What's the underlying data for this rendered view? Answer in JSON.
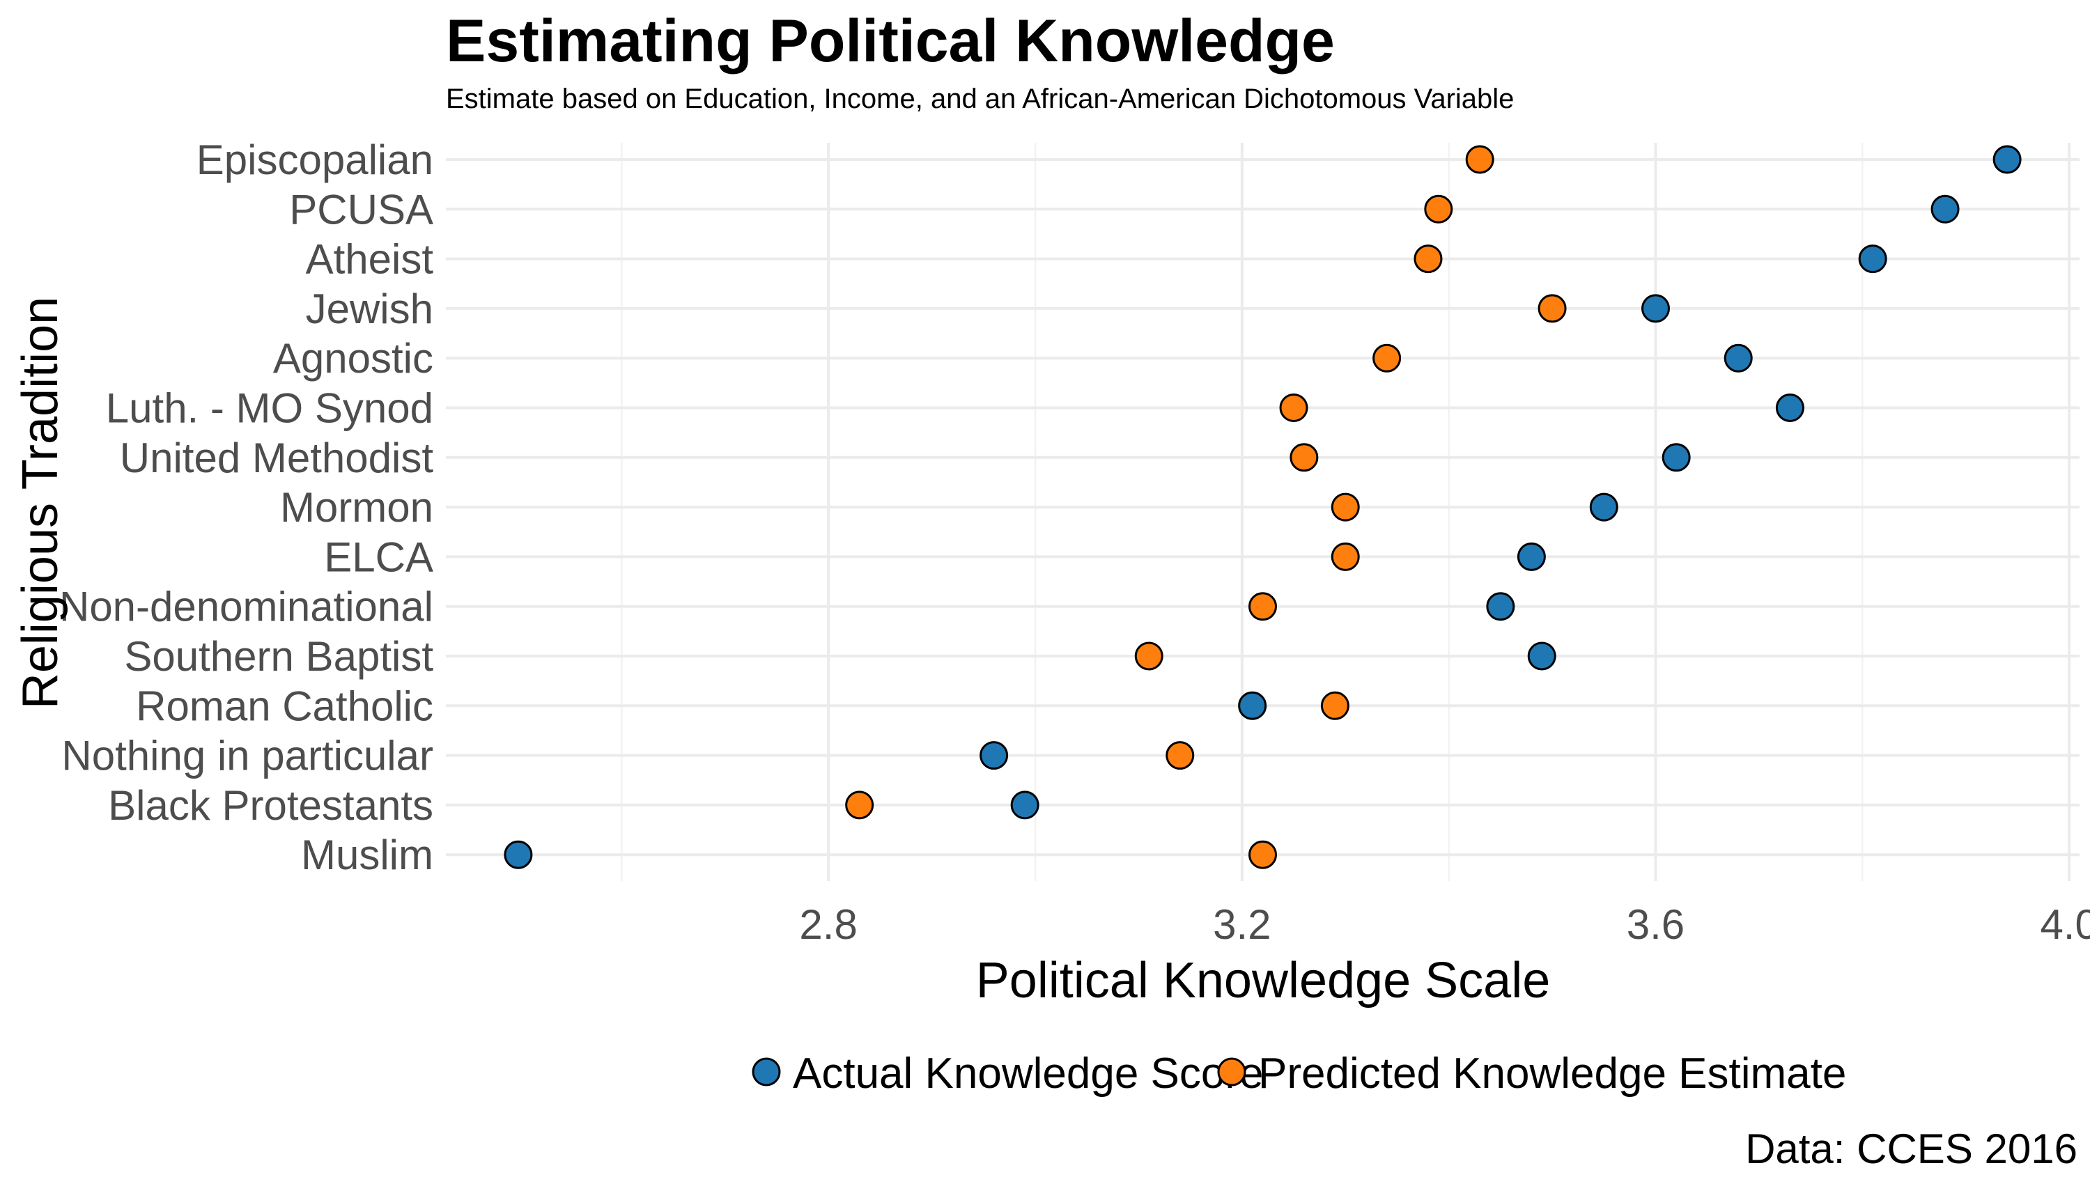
{
  "chart_data": {
    "type": "scatter",
    "title": "Estimating Political Knowledge",
    "subtitle": "Estimate based on Education, Income, and an African-American Dichotomous Variable",
    "xlabel": "Political Knowledge Scale",
    "ylabel": "Religious Tradition",
    "caption": "Data: CCES 2016",
    "xlim": [
      2.43,
      4.01
    ],
    "xticks": [
      2.8,
      3.2,
      3.6,
      4.0
    ],
    "xtick_labels": [
      "2.8",
      "3.2",
      "3.6",
      "4.0"
    ],
    "grid": true,
    "legend_position": "bottom",
    "categories": [
      "Episcopalian",
      "PCUSA",
      "Atheist",
      "Jewish",
      "Agnostic",
      "Luth. - MO Synod",
      "United Methodist",
      "Mormon",
      "ELCA",
      "Non-denominational",
      "Southern Baptist",
      "Roman Catholic",
      "Nothing in particular",
      "Black Protestants",
      "Muslim"
    ],
    "series": [
      {
        "name": "Actual Knowledge Score",
        "color": "#1f77b4",
        "values": [
          3.94,
          3.88,
          3.81,
          3.6,
          3.68,
          3.73,
          3.62,
          3.55,
          3.48,
          3.45,
          3.49,
          3.21,
          2.96,
          2.99,
          2.5
        ]
      },
      {
        "name": "Predicted Knowledge Estimate",
        "color": "#ff7f0e",
        "values": [
          3.43,
          3.39,
          3.38,
          3.5,
          3.34,
          3.25,
          3.26,
          3.3,
          3.3,
          3.22,
          3.11,
          3.29,
          3.14,
          2.83,
          3.22
        ]
      }
    ]
  }
}
